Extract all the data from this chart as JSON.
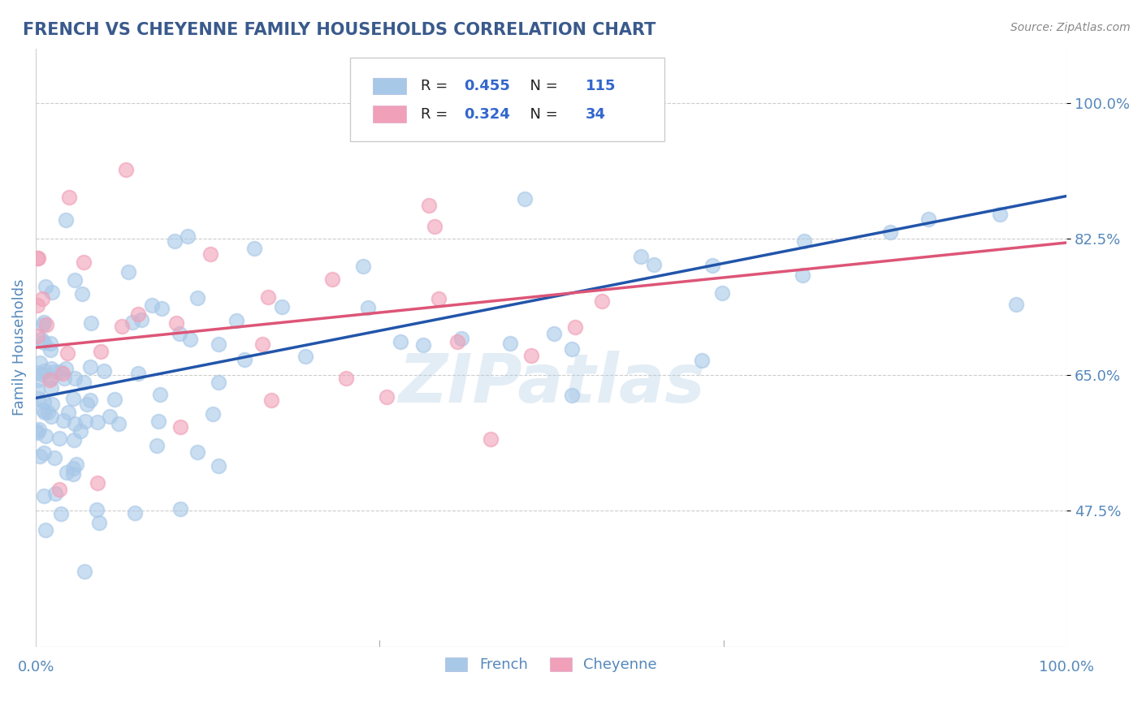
{
  "title": "FRENCH VS CHEYENNE FAMILY HOUSEHOLDS CORRELATION CHART",
  "source": "Source: ZipAtlas.com",
  "xlabel": "",
  "ylabel": "Family Households",
  "x_min": 0.0,
  "x_max": 100.0,
  "y_min": 30.0,
  "y_max": 107.0,
  "y_ticks": [
    47.5,
    65.0,
    82.5,
    100.0
  ],
  "x_ticks": [
    0.0,
    100.0
  ],
  "x_tick_labels": [
    "0.0%",
    "100.0%"
  ],
  "y_tick_labels": [
    "47.5%",
    "65.0%",
    "82.5%",
    "100.0%"
  ],
  "french_R": 0.455,
  "french_N": 115,
  "cheyenne_R": 0.324,
  "cheyenne_N": 34,
  "french_color": "#a8c8e8",
  "cheyenne_color": "#f0a0b8",
  "french_line_color": "#2255aa",
  "cheyenne_line_color": "#dd5577",
  "title_color": "#3a5a8c",
  "axis_color": "#5588bb",
  "background_color": "#ffffff",
  "watermark": "ZIPatlas",
  "legend_color": "#3366cc",
  "french_line_start_y": 62.0,
  "french_line_end_y": 88.0,
  "cheyenne_line_start_y": 68.5,
  "cheyenne_line_end_y": 82.0
}
